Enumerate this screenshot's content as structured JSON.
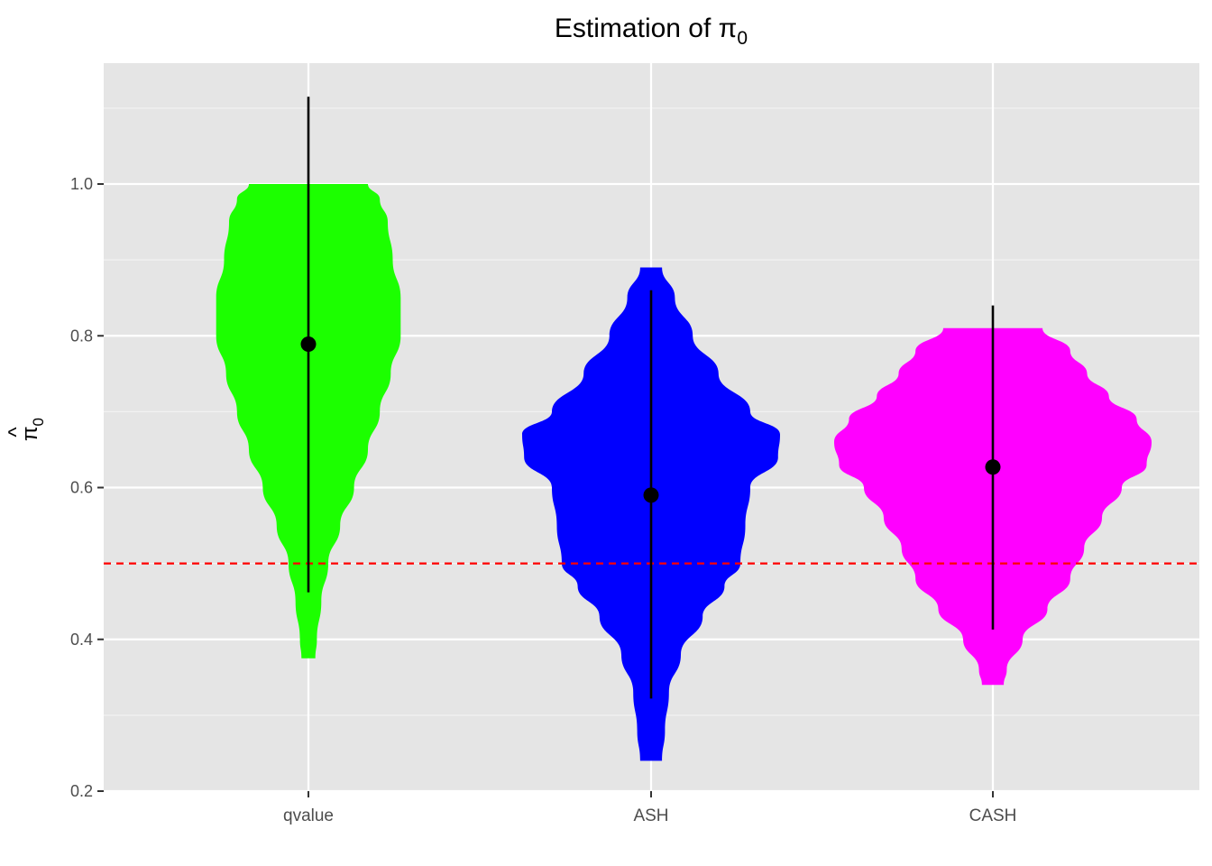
{
  "chart_data": {
    "type": "violin",
    "title": "Estimation of π",
    "title_subscript": "0",
    "ylabel_hat": "^",
    "ylabel": "π",
    "ylabel_subscript": "0",
    "xlabel": "",
    "ylim": [
      0.2,
      1.2
    ],
    "yticks": [
      0.2,
      0.4,
      0.6,
      0.8,
      1.0
    ],
    "ytick_labels": [
      "0.2",
      "0.4",
      "0.6",
      "0.8",
      "1.0"
    ],
    "grid": true,
    "reference_line": {
      "y": 0.5,
      "color": "#ff0000",
      "style": "dashed"
    },
    "categories": [
      "qvalue",
      "ASH",
      "CASH"
    ],
    "series": [
      {
        "category": "qvalue",
        "color": "#1cff00",
        "mean": 0.789,
        "lower": 0.462,
        "upper": 1.115,
        "violin_min": 0.375,
        "violin_max": 1.0,
        "half_width": [
          [
            0.375,
            0.07
          ],
          [
            0.4,
            0.085
          ],
          [
            0.45,
            0.13
          ],
          [
            0.5,
            0.2
          ],
          [
            0.55,
            0.32
          ],
          [
            0.6,
            0.46
          ],
          [
            0.65,
            0.6
          ],
          [
            0.7,
            0.72
          ],
          [
            0.75,
            0.83
          ],
          [
            0.8,
            0.93
          ],
          [
            0.85,
            0.93
          ],
          [
            0.9,
            0.85
          ],
          [
            0.95,
            0.8
          ],
          [
            0.98,
            0.72
          ],
          [
            1.0,
            0.6
          ]
        ]
      },
      {
        "category": "ASH",
        "color": "#0000ff",
        "mean": 0.59,
        "lower": 0.322,
        "upper": 0.86,
        "violin_min": 0.24,
        "violin_max": 0.891,
        "half_width": [
          [
            0.24,
            0.11
          ],
          [
            0.28,
            0.14
          ],
          [
            0.33,
            0.18
          ],
          [
            0.38,
            0.3
          ],
          [
            0.43,
            0.52
          ],
          [
            0.47,
            0.74
          ],
          [
            0.5,
            0.9
          ],
          [
            0.55,
            0.95
          ],
          [
            0.6,
            1.0
          ],
          [
            0.64,
            1.28
          ],
          [
            0.67,
            1.3
          ],
          [
            0.7,
            1.0
          ],
          [
            0.75,
            0.68
          ],
          [
            0.8,
            0.42
          ],
          [
            0.85,
            0.24
          ],
          [
            0.89,
            0.11
          ]
        ]
      },
      {
        "category": "CASH",
        "color": "#ff00ff",
        "mean": 0.627,
        "lower": 0.413,
        "upper": 0.84,
        "violin_min": 0.34,
        "violin_max": 0.812,
        "half_width": [
          [
            0.34,
            0.11
          ],
          [
            0.36,
            0.14
          ],
          [
            0.4,
            0.3
          ],
          [
            0.44,
            0.55
          ],
          [
            0.48,
            0.78
          ],
          [
            0.52,
            0.92
          ],
          [
            0.56,
            1.1
          ],
          [
            0.6,
            1.3
          ],
          [
            0.63,
            1.55
          ],
          [
            0.66,
            1.6
          ],
          [
            0.69,
            1.45
          ],
          [
            0.72,
            1.17
          ],
          [
            0.75,
            0.95
          ],
          [
            0.78,
            0.78
          ],
          [
            0.81,
            0.5
          ]
        ]
      }
    ]
  }
}
